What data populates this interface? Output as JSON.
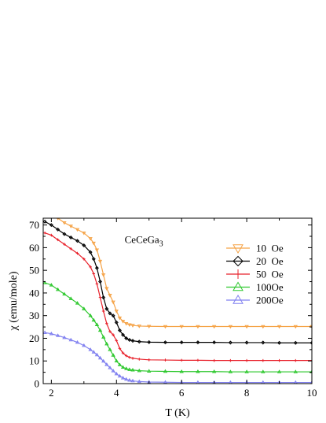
{
  "chart_data": {
    "type": "line",
    "xlabel": "T (K)",
    "ylabel": "χ (emu/mole)",
    "xlim": [
      1.75,
      10.0
    ],
    "ylim": [
      0,
      73
    ],
    "xticks": [
      2,
      4,
      6,
      8,
      10
    ],
    "yticks": [
      0,
      10,
      20,
      30,
      40,
      50,
      60,
      70
    ],
    "grid": false,
    "legend_position": "top-right",
    "annotation": {
      "text": "CeCeGa",
      "subscript": "3",
      "x": 4.25,
      "y": 62
    },
    "series": [
      {
        "name": "10  Oe",
        "color": "#f5a347",
        "marker": "triangle-down",
        "x": [
          1.8,
          2.0,
          2.2,
          2.4,
          2.6,
          2.8,
          3.0,
          3.2,
          3.3,
          3.4,
          3.5,
          3.6,
          3.7,
          3.8,
          3.9,
          4.0,
          4.1,
          4.2,
          4.3,
          4.4,
          4.5,
          4.7,
          5.0,
          5.5,
          6.0,
          6.5,
          7.0,
          7.5,
          8.0,
          8.5,
          9.0,
          9.5,
          10.0
        ],
        "y": [
          75.0,
          74.5,
          73.0,
          71.0,
          69.5,
          68.0,
          66.5,
          64.0,
          62.0,
          59.0,
          54.0,
          48.0,
          42.0,
          39.0,
          36.0,
          32.0,
          29.0,
          27.5,
          26.5,
          26.0,
          25.7,
          25.4,
          25.3,
          25.2,
          25.2,
          25.2,
          25.2,
          25.2,
          25.2,
          25.2,
          25.2,
          25.2,
          25.2
        ]
      },
      {
        "name": "20  Oe",
        "color": "#000000",
        "marker": "diamond",
        "x": [
          1.8,
          2.0,
          2.2,
          2.4,
          2.6,
          2.8,
          3.0,
          3.2,
          3.3,
          3.4,
          3.5,
          3.6,
          3.7,
          3.8,
          3.9,
          4.0,
          4.1,
          4.2,
          4.3,
          4.4,
          4.5,
          4.7,
          5.0,
          5.5,
          6.0,
          6.5,
          7.0,
          7.5,
          8.0,
          8.5,
          9.0,
          9.5,
          10.0
        ],
        "y": [
          71.5,
          70.0,
          68.0,
          66.0,
          64.5,
          63.0,
          61.0,
          58.0,
          55.0,
          51.0,
          45.0,
          38.0,
          33.0,
          31.0,
          30.0,
          27.0,
          23.5,
          21.5,
          20.0,
          19.3,
          18.9,
          18.5,
          18.3,
          18.2,
          18.2,
          18.2,
          18.2,
          18.1,
          18.1,
          18.1,
          18.0,
          18.0,
          18.0
        ]
      },
      {
        "name": "50  Oe",
        "color": "#e8202a",
        "marker": "plus",
        "x": [
          1.8,
          2.0,
          2.2,
          2.4,
          2.6,
          2.8,
          3.0,
          3.2,
          3.3,
          3.4,
          3.5,
          3.6,
          3.7,
          3.8,
          3.9,
          4.0,
          4.1,
          4.2,
          4.3,
          4.4,
          4.5,
          4.7,
          5.0,
          5.5,
          6.0,
          6.5,
          7.0,
          7.5,
          8.0,
          8.5,
          9.0,
          9.5,
          10.0
        ],
        "y": [
          66.5,
          65.5,
          63.5,
          61.5,
          59.5,
          57.5,
          55.0,
          51.5,
          48.5,
          44.0,
          38.0,
          32.0,
          26.5,
          23.0,
          21.5,
          19.0,
          15.5,
          13.5,
          12.3,
          11.6,
          11.2,
          10.8,
          10.5,
          10.4,
          10.3,
          10.3,
          10.2,
          10.2,
          10.2,
          10.2,
          10.2,
          10.2,
          10.2
        ]
      },
      {
        "name": "100Oe",
        "color": "#2ec82e",
        "marker": "triangle-up",
        "x": [
          1.8,
          2.0,
          2.2,
          2.4,
          2.6,
          2.8,
          3.0,
          3.2,
          3.3,
          3.4,
          3.5,
          3.6,
          3.7,
          3.8,
          3.9,
          4.0,
          4.1,
          4.2,
          4.3,
          4.4,
          4.5,
          4.7,
          5.0,
          5.5,
          6.0,
          6.5,
          7.0,
          7.5,
          8.0,
          8.5,
          9.0,
          9.5,
          10.0
        ],
        "y": [
          44.5,
          43.5,
          41.5,
          39.5,
          37.5,
          35.5,
          33.0,
          30.0,
          28.0,
          26.0,
          23.5,
          20.5,
          17.5,
          15.0,
          12.5,
          10.0,
          8.3,
          7.2,
          6.6,
          6.2,
          6.0,
          5.7,
          5.5,
          5.4,
          5.3,
          5.3,
          5.3,
          5.2,
          5.2,
          5.2,
          5.2,
          5.2,
          5.2
        ]
      },
      {
        "name": "200Oe",
        "color": "#8080f0",
        "marker": "triangle-up",
        "x": [
          1.8,
          2.0,
          2.2,
          2.4,
          2.6,
          2.8,
          3.0,
          3.2,
          3.3,
          3.4,
          3.5,
          3.6,
          3.7,
          3.8,
          3.9,
          4.0,
          4.1,
          4.2,
          4.3,
          4.4,
          4.5,
          4.7,
          5.0,
          5.5,
          6.0,
          6.5,
          7.0,
          7.5,
          8.0,
          8.5,
          9.0,
          9.5,
          10.0
        ],
        "y": [
          22.5,
          22.0,
          21.2,
          20.3,
          19.3,
          18.2,
          16.8,
          15.0,
          13.9,
          12.7,
          11.3,
          9.9,
          8.4,
          7.0,
          5.6,
          4.3,
          3.3,
          2.5,
          1.9,
          1.5,
          1.2,
          0.9,
          0.7,
          0.6,
          0.5,
          0.5,
          0.5,
          0.5,
          0.5,
          0.5,
          0.5,
          0.5,
          0.5
        ]
      }
    ]
  }
}
